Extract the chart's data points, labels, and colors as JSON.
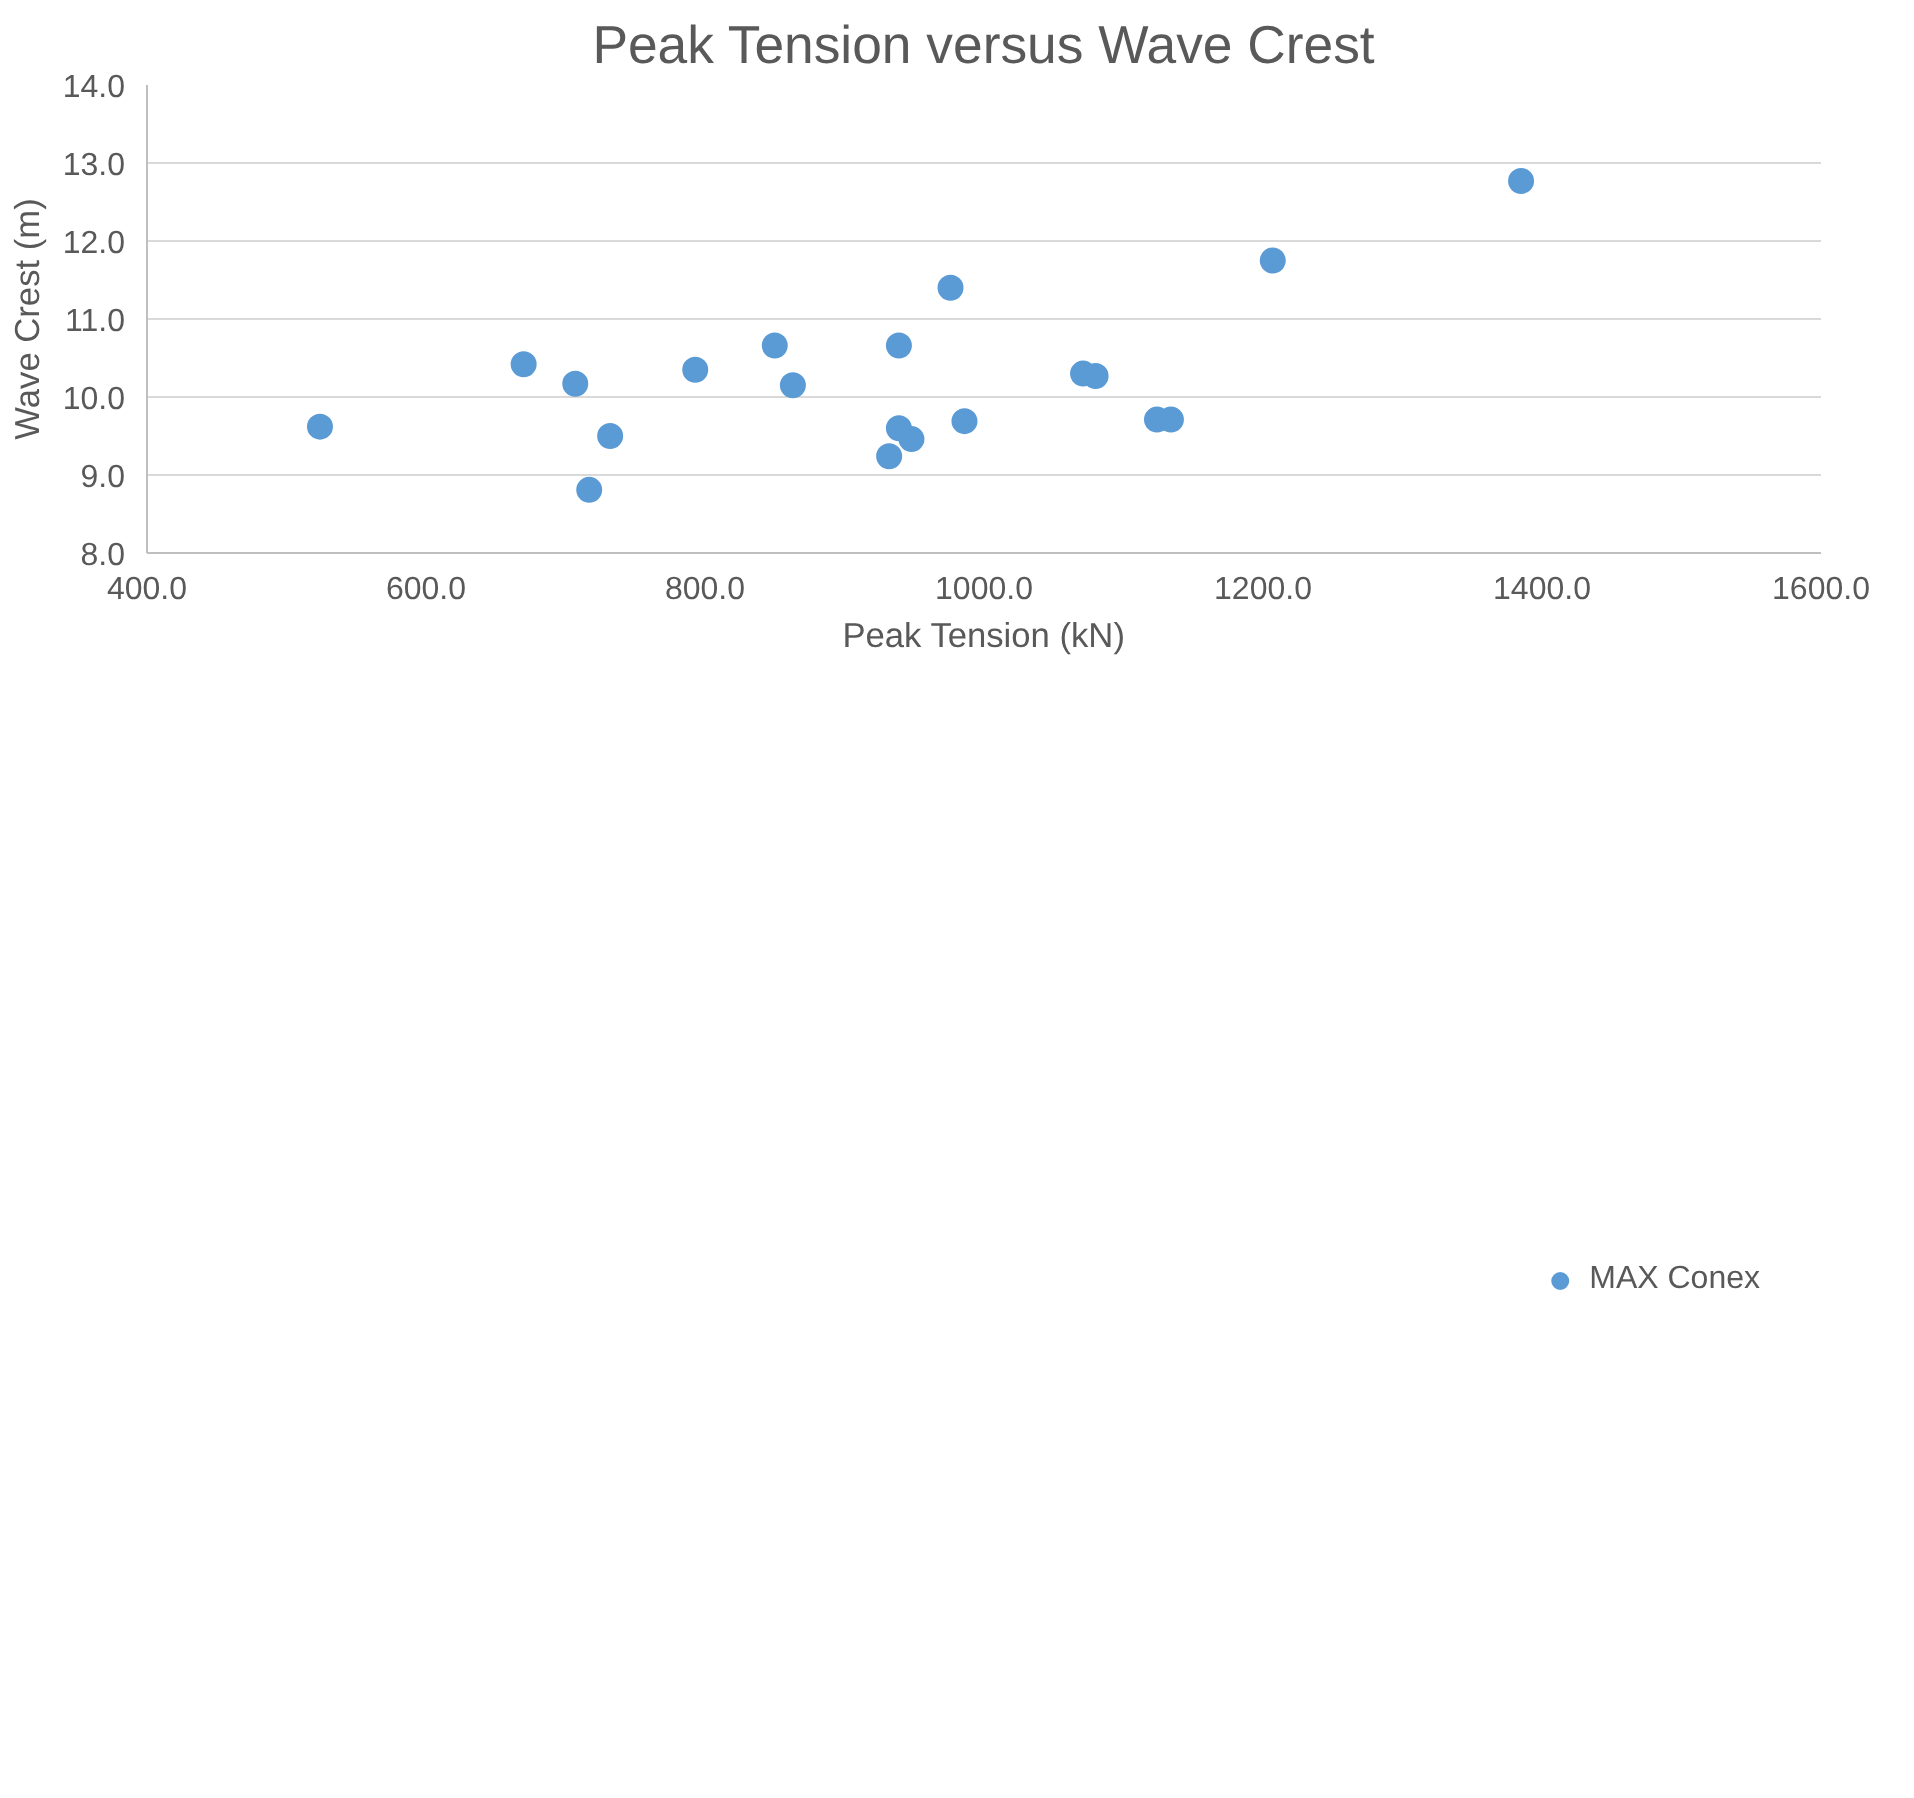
{
  "chart_data": {
    "type": "scatter",
    "title": "Peak Tension versus Wave Crest",
    "xlabel": "Peak Tension (kN)",
    "ylabel": "Wave Crest (m)",
    "xlim": [
      400,
      1600
    ],
    "ylim": [
      8,
      14
    ],
    "xticks": [
      {
        "value": 400,
        "label": "400.0"
      },
      {
        "value": 600,
        "label": "600.0"
      },
      {
        "value": 800,
        "label": "800.0"
      },
      {
        "value": 1000,
        "label": "1000.0"
      },
      {
        "value": 1200,
        "label": "1200.0"
      },
      {
        "value": 1400,
        "label": "1400.0"
      },
      {
        "value": 1600,
        "label": "1600.0"
      }
    ],
    "yticks": [
      {
        "value": 8,
        "label": "8.0"
      },
      {
        "value": 9,
        "label": "9.0"
      },
      {
        "value": 10,
        "label": "10.0"
      },
      {
        "value": 11,
        "label": "11.0"
      },
      {
        "value": 12,
        "label": "12.0"
      },
      {
        "value": 13,
        "label": "13.0"
      },
      {
        "value": 14,
        "label": "14.0"
      }
    ],
    "grid": "y",
    "legend": "bottom",
    "marker": "circle",
    "series": [
      {
        "name": "MAX Conex",
        "color": "#5b9bd5",
        "x": [
          524,
          670,
          707,
          732,
          717,
          793,
          850,
          863,
          939,
          976,
          939,
          948,
          932,
          986,
          1385,
          1207,
          1071,
          1080,
          1124,
          1134
        ],
        "values": [
          9.62,
          10.42,
          10.17,
          9.5,
          8.81,
          10.35,
          10.66,
          10.15,
          10.66,
          11.4,
          9.6,
          9.46,
          9.24,
          9.69,
          12.77,
          11.75,
          10.3,
          10.27,
          9.71,
          9.71
        ]
      }
    ]
  }
}
